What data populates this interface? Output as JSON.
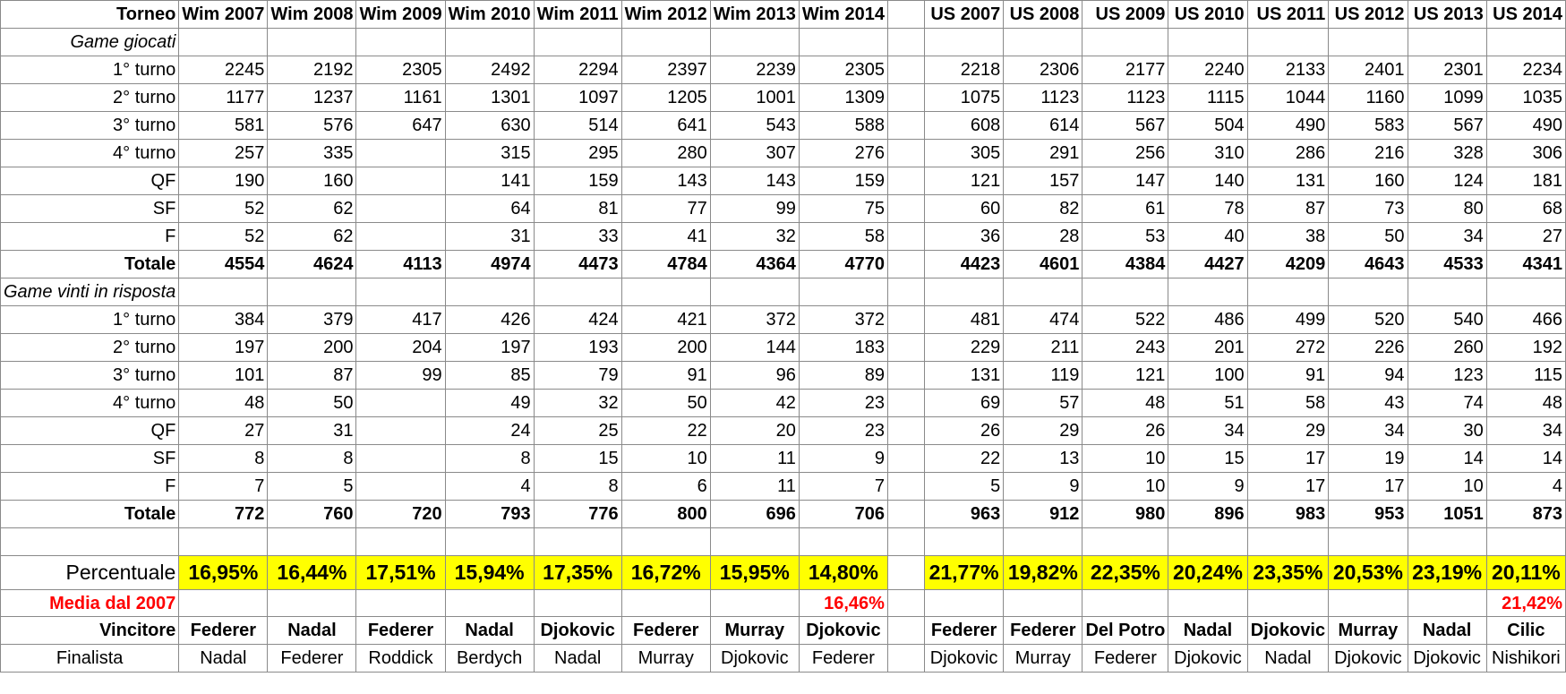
{
  "sheet": {
    "header": {
      "label": "Torneo",
      "wim": [
        "Wim 2007",
        "Wim 2008",
        "Wim 2009",
        "Wim 2010",
        "Wim 2011",
        "Wim 2012",
        "Wim 2013",
        "Wim 2014"
      ],
      "us": [
        "US 2007",
        "US 2008",
        "US 2009",
        "US 2010",
        "US 2011",
        "US 2012",
        "US 2013",
        "US 2014"
      ]
    },
    "section_played": "Game giocati",
    "played": [
      {
        "label": "1° turno",
        "wim": [
          "2245",
          "2192",
          "2305",
          "2492",
          "2294",
          "2397",
          "2239",
          "2305"
        ],
        "us": [
          "2218",
          "2306",
          "2177",
          "2240",
          "2133",
          "2401",
          "2301",
          "2234"
        ]
      },
      {
        "label": "2° turno",
        "wim": [
          "1177",
          "1237",
          "1161",
          "1301",
          "1097",
          "1205",
          "1001",
          "1309"
        ],
        "us": [
          "1075",
          "1123",
          "1123",
          "1115",
          "1044",
          "1160",
          "1099",
          "1035"
        ]
      },
      {
        "label": "3° turno",
        "wim": [
          "581",
          "576",
          "647",
          "630",
          "514",
          "641",
          "543",
          "588"
        ],
        "us": [
          "608",
          "614",
          "567",
          "504",
          "490",
          "583",
          "567",
          "490"
        ]
      },
      {
        "label": "4° turno",
        "wim": [
          "257",
          "335",
          "",
          "315",
          "295",
          "280",
          "307",
          "276"
        ],
        "us": [
          "305",
          "291",
          "256",
          "310",
          "286",
          "216",
          "328",
          "306"
        ]
      },
      {
        "label": "QF",
        "wim": [
          "190",
          "160",
          "",
          "141",
          "159",
          "143",
          "143",
          "159"
        ],
        "us": [
          "121",
          "157",
          "147",
          "140",
          "131",
          "160",
          "124",
          "181"
        ]
      },
      {
        "label": "SF",
        "wim": [
          "52",
          "62",
          "",
          "64",
          "81",
          "77",
          "99",
          "75"
        ],
        "us": [
          "60",
          "82",
          "61",
          "78",
          "87",
          "73",
          "80",
          "68"
        ]
      },
      {
        "label": "F",
        "wim": [
          "52",
          "62",
          "",
          "31",
          "33",
          "41",
          "32",
          "58"
        ],
        "us": [
          "36",
          "28",
          "53",
          "40",
          "38",
          "50",
          "34",
          "27"
        ]
      }
    ],
    "played_total": {
      "label": "Totale",
      "wim": [
        "4554",
        "4624",
        "4113",
        "4974",
        "4473",
        "4784",
        "4364",
        "4770"
      ],
      "us": [
        "4423",
        "4601",
        "4384",
        "4427",
        "4209",
        "4643",
        "4533",
        "4341"
      ]
    },
    "section_won": "Game vinti in risposta",
    "won": [
      {
        "label": "1° turno",
        "wim": [
          "384",
          "379",
          "417",
          "426",
          "424",
          "421",
          "372",
          "372"
        ],
        "us": [
          "481",
          "474",
          "522",
          "486",
          "499",
          "520",
          "540",
          "466"
        ]
      },
      {
        "label": "2° turno",
        "wim": [
          "197",
          "200",
          "204",
          "197",
          "193",
          "200",
          "144",
          "183"
        ],
        "us": [
          "229",
          "211",
          "243",
          "201",
          "272",
          "226",
          "260",
          "192"
        ]
      },
      {
        "label": "3° turno",
        "wim": [
          "101",
          "87",
          "99",
          "85",
          "79",
          "91",
          "96",
          "89"
        ],
        "us": [
          "131",
          "119",
          "121",
          "100",
          "91",
          "94",
          "123",
          "115"
        ]
      },
      {
        "label": "4° turno",
        "wim": [
          "48",
          "50",
          "",
          "49",
          "32",
          "50",
          "42",
          "23"
        ],
        "us": [
          "69",
          "57",
          "48",
          "51",
          "58",
          "43",
          "74",
          "48"
        ]
      },
      {
        "label": "QF",
        "wim": [
          "27",
          "31",
          "",
          "24",
          "25",
          "22",
          "20",
          "23"
        ],
        "us": [
          "26",
          "29",
          "26",
          "34",
          "29",
          "34",
          "30",
          "34"
        ]
      },
      {
        "label": "SF",
        "wim": [
          "8",
          "8",
          "",
          "8",
          "15",
          "10",
          "11",
          "9"
        ],
        "us": [
          "22",
          "13",
          "10",
          "15",
          "17",
          "19",
          "14",
          "14"
        ]
      },
      {
        "label": "F",
        "wim": [
          "7",
          "5",
          "",
          "4",
          "8",
          "6",
          "11",
          "7"
        ],
        "us": [
          "5",
          "9",
          "10",
          "9",
          "17",
          "17",
          "10",
          "4"
        ]
      }
    ],
    "won_total": {
      "label": "Totale",
      "wim": [
        "772",
        "760",
        "720",
        "793",
        "776",
        "800",
        "696",
        "706"
      ],
      "us": [
        "963",
        "912",
        "980",
        "896",
        "983",
        "953",
        "1051",
        "873"
      ]
    },
    "percent": {
      "label": "Percentuale",
      "wim": [
        "16,95%",
        "16,44%",
        "17,51%",
        "15,94%",
        "17,35%",
        "16,72%",
        "15,95%",
        "14,80%"
      ],
      "us": [
        "21,77%",
        "19,82%",
        "22,35%",
        "20,24%",
        "23,35%",
        "20,53%",
        "23,19%",
        "20,11%"
      ]
    },
    "media": {
      "label": "Media dal 2007",
      "wim": "16,46%",
      "us": "21,42%"
    },
    "winner": {
      "label": "Vincitore",
      "wim": [
        "Federer",
        "Nadal",
        "Federer",
        "Nadal",
        "Djokovic",
        "Federer",
        "Murray",
        "Djokovic"
      ],
      "us": [
        "Federer",
        "Federer",
        "Del Potro",
        "Nadal",
        "Djokovic",
        "Murray",
        "Nadal",
        "Cilic"
      ]
    },
    "finalist": {
      "label": "Finalista",
      "wim": [
        "Nadal",
        "Federer",
        "Roddick",
        "Berdych",
        "Nadal",
        "Murray",
        "Djokovic",
        "Federer"
      ],
      "us": [
        "Djokovic",
        "Murray",
        "Federer",
        "Djokovic",
        "Nadal",
        "Djokovic",
        "Djokovic",
        "Nishikori"
      ]
    },
    "colors": {
      "highlight": "#ffff00",
      "accent_red": "#ff0000",
      "grid": "#8a8a8a"
    }
  }
}
